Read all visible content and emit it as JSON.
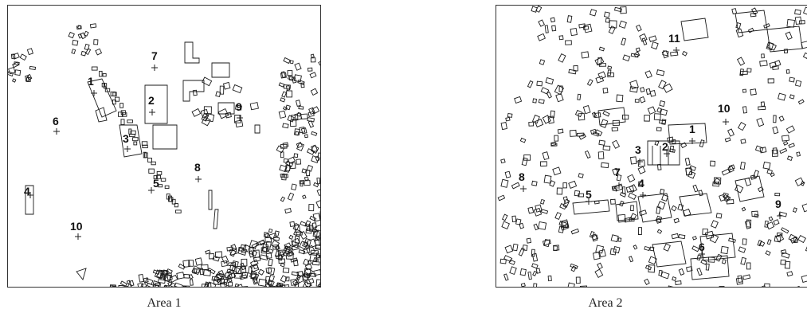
{
  "figure": {
    "panels": [
      {
        "caption": "Area 1",
        "points": [
          "1",
          "2",
          "3",
          "4",
          "5",
          "6",
          "7",
          "8",
          "9",
          "10"
        ]
      },
      {
        "caption": "Area 2",
        "points": [
          "1",
          "2",
          "3",
          "4",
          "5",
          "6",
          "7",
          "8",
          "9",
          "10",
          "11"
        ]
      }
    ]
  }
}
